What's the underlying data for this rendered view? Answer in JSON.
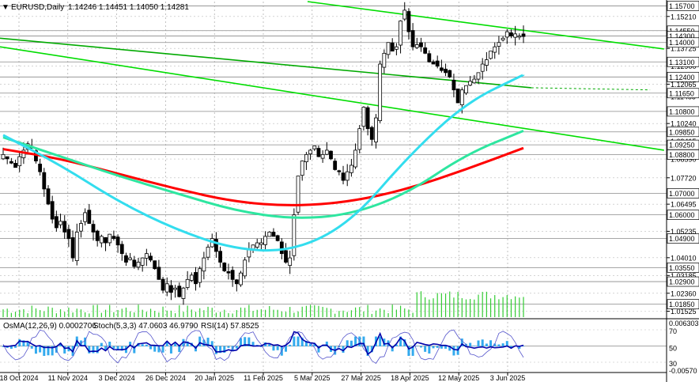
{
  "header": {
    "symbol_line": "EURUSD,Daily",
    "ohlc": "1.14246 1.14451 1.14050 1.14281"
  },
  "indicator_header": {
    "osma": "OsMA(12,26,9) 0.0002706",
    "stoch": "Stoch(5,3,3) 47.0603 46.9790",
    "rsi": "RSI(14) 57.8525"
  },
  "chart_data": {
    "type": "candlestick",
    "symbol": "EURUSD",
    "timeframe": "Daily",
    "y_axis": {
      "range": [
        1.0125,
        1.159
      ],
      "tick_labels": [
        "1.15210",
        "1.14550",
        "1.13725",
        "1.12900",
        "1.12065",
        "1.11485",
        "1.10240",
        "1.09415",
        "1.08590",
        "1.07720",
        "1.06495",
        "1.05235",
        "1.04010",
        "1.03185",
        "1.02360",
        "1.01525"
      ],
      "highlighted_levels": [
        {
          "value": 1.157,
          "label": "1.15700"
        },
        {
          "value": 1.1455,
          "label": "1.14550"
        },
        {
          "value": 1.143,
          "label": "1.14300"
        },
        {
          "value": 1.14,
          "label": "1.14000"
        },
        {
          "value": 1.131,
          "label": "1.13100"
        },
        {
          "value": 1.124,
          "label": "1.12400"
        },
        {
          "value": 1.1165,
          "label": "1.11650"
        },
        {
          "value": 1.108,
          "label": "1.10800"
        },
        {
          "value": 1.0985,
          "label": "1.09850"
        },
        {
          "value": 1.0925,
          "label": "1.09250"
        },
        {
          "value": 1.088,
          "label": "1.08800"
        },
        {
          "value": 1.07,
          "label": "1.07000"
        },
        {
          "value": 1.06,
          "label": "1.06000"
        },
        {
          "value": 1.049,
          "label": "1.04900"
        },
        {
          "value": 1.0355,
          "label": "1.03550"
        },
        {
          "value": 1.029,
          "label": "1.02900"
        },
        {
          "value": 1.0185,
          "label": "1.01850"
        }
      ]
    },
    "x_axis": {
      "labels": [
        "18 Oct 2024",
        "11 Nov 2024",
        "3 Dec 2024",
        "26 Dec 2024",
        "20 Jan 2025",
        "11 Feb 2025",
        "5 Mar 2025",
        "27 Mar 2025",
        "18 Apr 2025",
        "12 May 2025",
        "3 Jun 2025"
      ]
    },
    "price_path": [
      [
        1.088,
        1.086,
        1.084,
        1.082,
        1.087,
        1.09,
        1.093,
        1.091,
        1.085
      ],
      [
        1.08,
        1.072,
        1.065,
        1.058,
        1.054,
        1.057,
        1.052,
        1.049,
        1.04,
        1.052,
        1.056,
        1.061
      ],
      [
        1.056,
        1.052,
        1.048,
        1.05,
        1.047,
        1.051,
        1.049,
        1.046,
        1.042,
        1.038,
        1.04,
        1.036,
        1.038
      ],
      [
        1.04,
        1.042,
        1.039,
        1.035,
        1.03,
        1.025,
        1.028,
        1.024,
        1.026,
        1.022,
        1.026,
        1.03
      ],
      [
        1.032,
        1.028,
        1.035,
        1.04,
        1.045,
        1.049,
        1.043,
        1.038,
        1.034,
        1.033,
        1.03,
        1.028
      ],
      [
        1.033,
        1.039,
        1.044,
        1.046,
        1.047,
        1.047,
        1.05,
        1.052,
        1.05,
        1.048,
        1.042,
        1.038,
        1.04
      ],
      [
        1.06,
        1.078,
        1.085,
        1.088,
        1.09,
        1.092,
        1.087,
        1.088,
        1.09,
        1.086,
        1.081,
        1.08,
        1.076
      ],
      [
        1.08,
        1.083,
        1.09,
        1.1,
        1.11,
        1.1,
        1.095,
        1.105,
        1.13,
        1.135,
        1.14,
        1.136,
        1.138
      ],
      [
        1.15,
        1.155,
        1.145,
        1.138,
        1.139,
        1.138,
        1.135,
        1.131,
        1.13,
        1.129,
        1.127,
        1.126,
        1.124
      ],
      [
        1.118,
        1.112,
        1.118,
        1.12,
        1.122,
        1.123,
        1.126,
        1.13,
        1.132,
        1.136,
        1.138,
        1.14
      ],
      [
        1.142,
        1.145,
        1.143,
        1.144,
        1.143,
        1.1428
      ]
    ],
    "moving_averages": [
      {
        "color": "#ff0000",
        "points": [
          [
            0,
            1.0905
          ],
          [
            0.1,
            1.086
          ],
          [
            0.2,
            1.079
          ],
          [
            0.3,
            1.072
          ],
          [
            0.4,
            1.066
          ],
          [
            0.5,
            1.064
          ],
          [
            0.6,
            1.066
          ],
          [
            0.7,
            1.072
          ],
          [
            0.8,
            1.081
          ],
          [
            0.9,
            1.091
          ]
        ]
      },
      {
        "color": "#2ee6a0",
        "points": [
          [
            0,
            1.096
          ],
          [
            0.1,
            1.087
          ],
          [
            0.2,
            1.078
          ],
          [
            0.3,
            1.07
          ],
          [
            0.4,
            1.062
          ],
          [
            0.5,
            1.058
          ],
          [
            0.6,
            1.06
          ],
          [
            0.7,
            1.07
          ],
          [
            0.8,
            1.088
          ],
          [
            0.9,
            1.099
          ]
        ]
      },
      {
        "color": "#33ddee",
        "points": [
          [
            0,
            1.097
          ],
          [
            0.1,
            1.083
          ],
          [
            0.2,
            1.066
          ],
          [
            0.3,
            1.053
          ],
          [
            0.4,
            1.044
          ],
          [
            0.5,
            1.043
          ],
          [
            0.6,
            1.056
          ],
          [
            0.7,
            1.087
          ],
          [
            0.8,
            1.112
          ],
          [
            0.9,
            1.125
          ]
        ]
      }
    ],
    "trend_lines": [
      {
        "color": "#00dd00",
        "from": [
          0.44,
          1.159
        ],
        "to": [
          0.95,
          1.137
        ]
      },
      {
        "color": "#00dd00",
        "from": [
          0.0,
          1.138
        ],
        "to": [
          0.95,
          1.09
        ]
      },
      {
        "color": "#00aa00",
        "from": [
          0.0,
          1.142
        ],
        "to": [
          0.76,
          1.119
        ],
        "dashed_to": [
          0.93,
          1.118
        ]
      }
    ],
    "indicator_panel": {
      "right_labels": [
        "0.006303",
        "70",
        "50",
        "30",
        "-0.00570"
      ]
    }
  }
}
